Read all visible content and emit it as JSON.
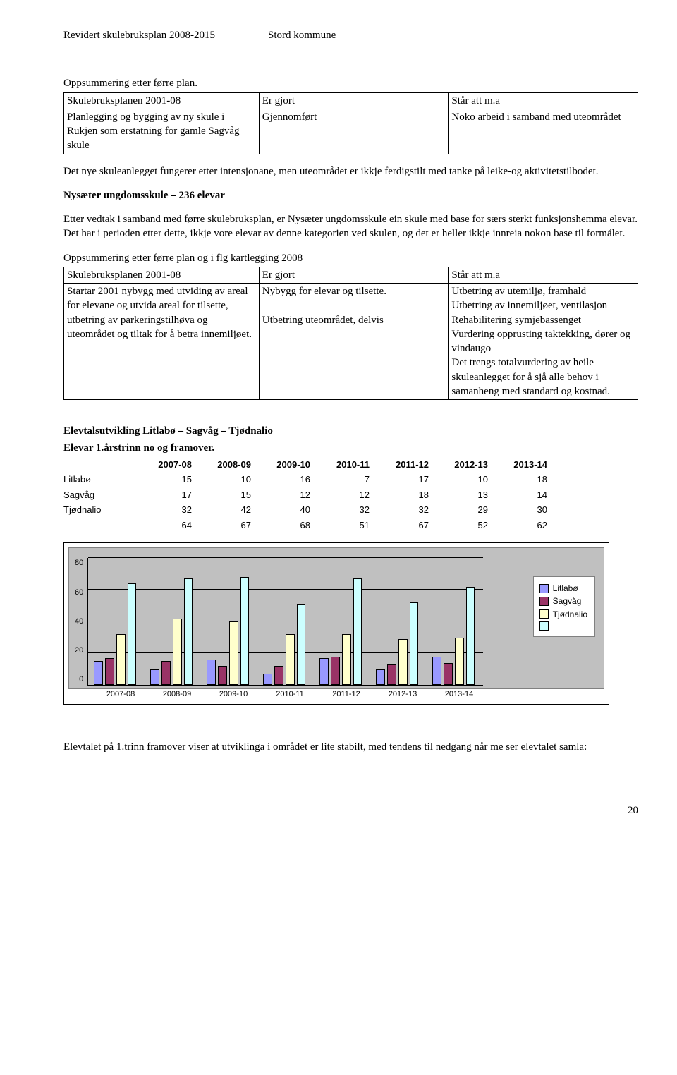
{
  "header": {
    "left": "Revidert skulebruksplan 2008-2015",
    "right": "Stord kommune"
  },
  "pre_table1": "Oppsummering etter førre plan.",
  "table1": {
    "rows": [
      [
        "Skulebruksplanen 2001-08",
        "Er gjort",
        "Står att m.a"
      ],
      [
        "Planlegging og bygging av ny skule i Rukjen som erstatning for gamle Sagvåg skule",
        "Gjennomført",
        "Noko arbeid i samband med uteområdet"
      ]
    ]
  },
  "para1": "Det nye skuleanlegget fungerer etter intensjonane, men uteområdet er ikkje ferdigstilt med tanke på leike-og aktivitetstilbodet.",
  "heading1": "Nysæter ungdomsskule – 236 elevar",
  "para2": "Etter vedtak i samband med førre skulebruksplan, er Nysæter ungdomsskule ein skule med base for særs sterkt funksjonshemma elevar. Det har i perioden etter dette, ikkje vore elevar av denne kategorien ved skulen, og det er heller ikkje innreia nokon base til formålet.",
  "pre_table2": "Oppsummering etter førre plan og i flg kartlegging 2008",
  "table2": {
    "rows": [
      [
        "Skulebruksplanen 2001-08",
        "Er gjort",
        "Står att m.a"
      ],
      [
        "Startar 2001 nybygg med utviding av areal for elevane og utvida areal for tilsette, utbetring av parkeringstilhøva og uteområdet og tiltak for å betra innemiljøet.",
        "Nybygg for elevar og tilsette.\n\nUtbetring uteområdet, delvis",
        "Utbetring av utemiljø, framhald\nUtbetring av innemiljøet, ventilasjon\nRehabilitering symjebassenget\nVurdering opprusting taktekking, dører og vindaugo\nDet trengs totalvurdering av heile skuleanlegget for å sjå alle behov i samanheng med standard og kostnad."
      ]
    ]
  },
  "elev_title": "Elevtalsutvikling Litlabø – Sagvåg – Tjødnalio",
  "elev_sub": "Elevar 1.årstrinn no og framover.",
  "elev_table": {
    "years": [
      "2007-08",
      "2008-09",
      "2009-10",
      "2010-11",
      "2011-12",
      "2012-13",
      "2013-14"
    ],
    "rows": [
      {
        "label": "Litlabø",
        "vals": [
          15,
          10,
          16,
          7,
          17,
          10,
          18
        ]
      },
      {
        "label": "Sagvåg",
        "vals": [
          17,
          15,
          12,
          12,
          18,
          13,
          14
        ]
      },
      {
        "label": "Tjødnalio",
        "vals": [
          32,
          42,
          40,
          32,
          32,
          29,
          30
        ]
      }
    ],
    "totals": [
      64,
      67,
      68,
      51,
      67,
      52,
      62
    ]
  },
  "chart": {
    "type": "bar",
    "categories": [
      "2007-08",
      "2008-09",
      "2009-10",
      "2010-11",
      "2011-12",
      "2012-13",
      "2013-14"
    ],
    "series": [
      {
        "name": "Litlabø",
        "color": "#9999ff",
        "values": [
          15,
          10,
          16,
          7,
          17,
          10,
          18
        ]
      },
      {
        "name": "Sagvåg",
        "color": "#993366",
        "values": [
          17,
          15,
          12,
          12,
          18,
          13,
          14
        ]
      },
      {
        "name": "Tjødnalio",
        "color": "#ffffcc",
        "values": [
          32,
          42,
          40,
          32,
          32,
          29,
          30
        ]
      },
      {
        "name": "",
        "color": "#ccffff",
        "values": [
          64,
          67,
          68,
          51,
          67,
          52,
          62
        ]
      }
    ],
    "ylim": [
      0,
      80
    ],
    "yticks": [
      0,
      20,
      40,
      60,
      80
    ],
    "plot_bg": "#c0c0c0",
    "grid_color": "#000000",
    "legend_bg": "#ffffff",
    "fontsize": 11
  },
  "para3": "Elevtalet på 1.trinn framover viser at utviklinga i området er lite stabilt, med tendens til nedgang når me ser elevtalet samla:",
  "page_num": "20"
}
